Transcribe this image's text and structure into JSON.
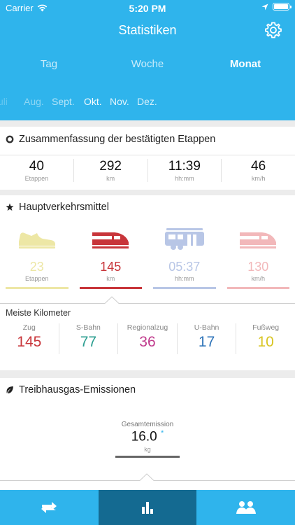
{
  "status": {
    "carrier": "Carrier",
    "time": "5:20 PM"
  },
  "header": {
    "title": "Statistiken"
  },
  "periods": [
    {
      "label": "Tag",
      "active": false
    },
    {
      "label": "Woche",
      "active": false
    },
    {
      "label": "Monat",
      "active": true
    }
  ],
  "months": [
    "Juli",
    "Aug.",
    "Sept.",
    "Okt.",
    "Nov.",
    "Dez."
  ],
  "summary": {
    "title": "Zusammenfassung der bestätigten Etappen",
    "stats": [
      {
        "value": "40",
        "unit": "Etappen"
      },
      {
        "value": "292",
        "unit": "km"
      },
      {
        "value": "11:39",
        "unit": "hh:mm"
      },
      {
        "value": "46",
        "unit": "km/h"
      }
    ]
  },
  "main_transport": {
    "title": "Hauptverkehrsmittel",
    "modes": [
      {
        "icon": "shoe-icon",
        "value": "23",
        "unit": "Etappen",
        "color": "#ede7a5"
      },
      {
        "icon": "train-icon",
        "value": "145",
        "unit": "km",
        "color": "#c8353a"
      },
      {
        "icon": "tram-icon",
        "value": "05:37",
        "unit": "hh:mm",
        "color": "#b8c6e6"
      },
      {
        "icon": "train-faded-icon",
        "value": "130",
        "unit": "km/h",
        "color": "#f2b8ba"
      }
    ]
  },
  "most_km": {
    "title": "Meiste Kilometer",
    "items": [
      {
        "label": "Zug",
        "value": "145",
        "color": "#c8353a"
      },
      {
        "label": "S-Bahn",
        "value": "77",
        "color": "#2a9d8f"
      },
      {
        "label": "Regionalzug",
        "value": "36",
        "color": "#c03a8c"
      },
      {
        "label": "U-Bahn",
        "value": "17",
        "color": "#2d73b8"
      },
      {
        "label": "Fußweg",
        "value": "10",
        "color": "#d8c522"
      }
    ]
  },
  "emissions": {
    "title": "Treibhausgas-Emissionen",
    "total_label": "Gesamtemission",
    "total_value": "16.0",
    "total_marker": "*",
    "total_unit": "kg"
  },
  "tabbar": [
    {
      "icon": "transfer-icon",
      "active": false
    },
    {
      "icon": "bar-chart-icon",
      "active": true
    },
    {
      "icon": "people-icon",
      "active": false
    }
  ],
  "colors": {
    "primary": "#2fb4ec",
    "tab_active": "#146a91"
  }
}
